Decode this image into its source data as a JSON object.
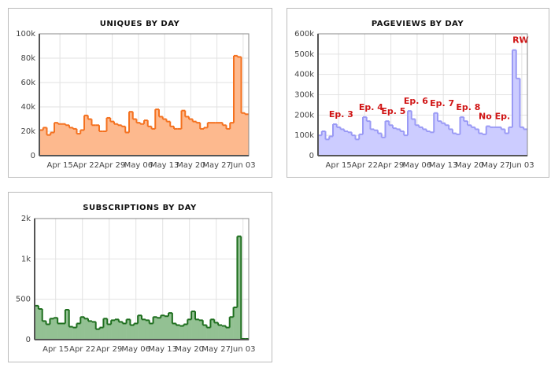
{
  "chart_data": [
    {
      "type": "step-area",
      "title": "UNIQUES BY DAY",
      "color": "#f4711f",
      "fill": "#fdb98e",
      "categories": [
        null,
        null,
        null,
        null,
        null,
        "Apr 15",
        null,
        null,
        null,
        null,
        null,
        null,
        "Apr 22",
        null,
        null,
        null,
        null,
        null,
        null,
        "Apr 29",
        null,
        null,
        null,
        null,
        null,
        null,
        "May 06",
        null,
        null,
        null,
        null,
        null,
        null,
        "May 13",
        null,
        null,
        null,
        null,
        null,
        null,
        "May 20",
        null,
        null,
        null,
        null,
        null,
        null,
        "May 27",
        null,
        null,
        null,
        null,
        null,
        null,
        "Jun 03",
        null
      ],
      "values": [
        21000,
        23000,
        17000,
        19000,
        27000,
        26000,
        26000,
        25000,
        23000,
        22000,
        18000,
        21000,
        33000,
        30000,
        25000,
        25000,
        20000,
        20000,
        31000,
        28000,
        26000,
        25000,
        24000,
        19000,
        36000,
        30000,
        27000,
        26000,
        29000,
        24000,
        22000,
        38000,
        32000,
        30000,
        28000,
        24000,
        22000,
        22000,
        37000,
        32000,
        30000,
        28000,
        27000,
        22000,
        23000,
        27000,
        27000,
        27000,
        27000,
        25000,
        22000,
        27000,
        82000,
        81000,
        35000,
        34000
      ],
      "ylim": [
        0,
        100000
      ],
      "yticks": [
        0,
        {
          "value": 20000,
          "label": "20k"
        },
        {
          "value": 40000,
          "label": "40k"
        },
        {
          "value": 60000,
          "label": "60k"
        },
        {
          "value": 80000,
          "label": "80k"
        },
        {
          "value": 100000,
          "label": "100k"
        }
      ],
      "grid": true
    },
    {
      "type": "step-area",
      "title": "PAGEVIEWS BY DAY",
      "color": "#9a9af5",
      "fill": "#ccccff",
      "categories": [
        null,
        null,
        null,
        null,
        null,
        "Apr 15",
        null,
        null,
        null,
        null,
        null,
        null,
        "Apr 22",
        null,
        null,
        null,
        null,
        null,
        null,
        "Apr 29",
        null,
        null,
        null,
        null,
        null,
        null,
        "May 06",
        null,
        null,
        null,
        null,
        null,
        null,
        "May 13",
        null,
        null,
        null,
        null,
        null,
        null,
        "May 20",
        null,
        null,
        null,
        null,
        null,
        null,
        "May 27",
        null,
        null,
        null,
        null,
        null,
        null,
        "Jun 03",
        null
      ],
      "values": [
        100000,
        120000,
        80000,
        95000,
        155000,
        140000,
        130000,
        120000,
        115000,
        100000,
        80000,
        105000,
        190000,
        170000,
        130000,
        125000,
        110000,
        90000,
        170000,
        150000,
        135000,
        130000,
        120000,
        100000,
        220000,
        180000,
        150000,
        140000,
        130000,
        120000,
        115000,
        210000,
        170000,
        160000,
        150000,
        130000,
        110000,
        105000,
        190000,
        170000,
        150000,
        140000,
        130000,
        110000,
        105000,
        145000,
        140000,
        140000,
        140000,
        130000,
        110000,
        140000,
        520000,
        380000,
        140000,
        130000
      ],
      "ylim": [
        0,
        600000
      ],
      "yticks": [
        0,
        {
          "value": 100000,
          "label": "100k"
        },
        {
          "value": 200000,
          "label": "200k"
        },
        {
          "value": 300000,
          "label": "300k"
        },
        {
          "value": 400000,
          "label": "400k"
        },
        {
          "value": 500000,
          "label": "500k"
        },
        {
          "value": 600000,
          "label": "600k"
        }
      ],
      "grid": true,
      "annotations": [
        "Ep. 3",
        "Ep. 4",
        "Ep. 5",
        "Ep. 6",
        "Ep. 7",
        "Ep. 8",
        "No Ep.",
        "RW"
      ],
      "annotation_color": "#d01515"
    },
    {
      "type": "step-area",
      "title": "SUBSCRIPTIONS BY DAY",
      "color": "#1e6e1e",
      "fill": "#93c193",
      "categories": [
        null,
        null,
        null,
        null,
        null,
        "Apr 15",
        null,
        null,
        null,
        null,
        null,
        null,
        "Apr 22",
        null,
        null,
        null,
        null,
        null,
        null,
        "Apr 29",
        null,
        null,
        null,
        null,
        null,
        null,
        "May 06",
        null,
        null,
        null,
        null,
        null,
        null,
        "May 13",
        null,
        null,
        null,
        null,
        null,
        null,
        "May 20",
        null,
        null,
        null,
        null,
        null,
        null,
        "May 27",
        null,
        null,
        null,
        null,
        null,
        null,
        "Jun 03",
        null
      ],
      "values": [
        420,
        380,
        230,
        190,
        260,
        270,
        200,
        200,
        370,
        160,
        150,
        200,
        280,
        260,
        230,
        220,
        130,
        150,
        260,
        190,
        240,
        250,
        220,
        200,
        250,
        180,
        200,
        300,
        250,
        240,
        200,
        280,
        270,
        300,
        290,
        330,
        200,
        180,
        170,
        190,
        250,
        350,
        250,
        240,
        180,
        150,
        250,
        210,
        180,
        170,
        150,
        280,
        400,
        1280,
        10,
        10
      ],
      "ylim": [
        0,
        1500
      ],
      "yticks": [
        0,
        500,
        {
          "value": 1000,
          "label": "1k"
        },
        {
          "value": 1500,
          "label": "2k"
        }
      ],
      "grid": true
    }
  ]
}
